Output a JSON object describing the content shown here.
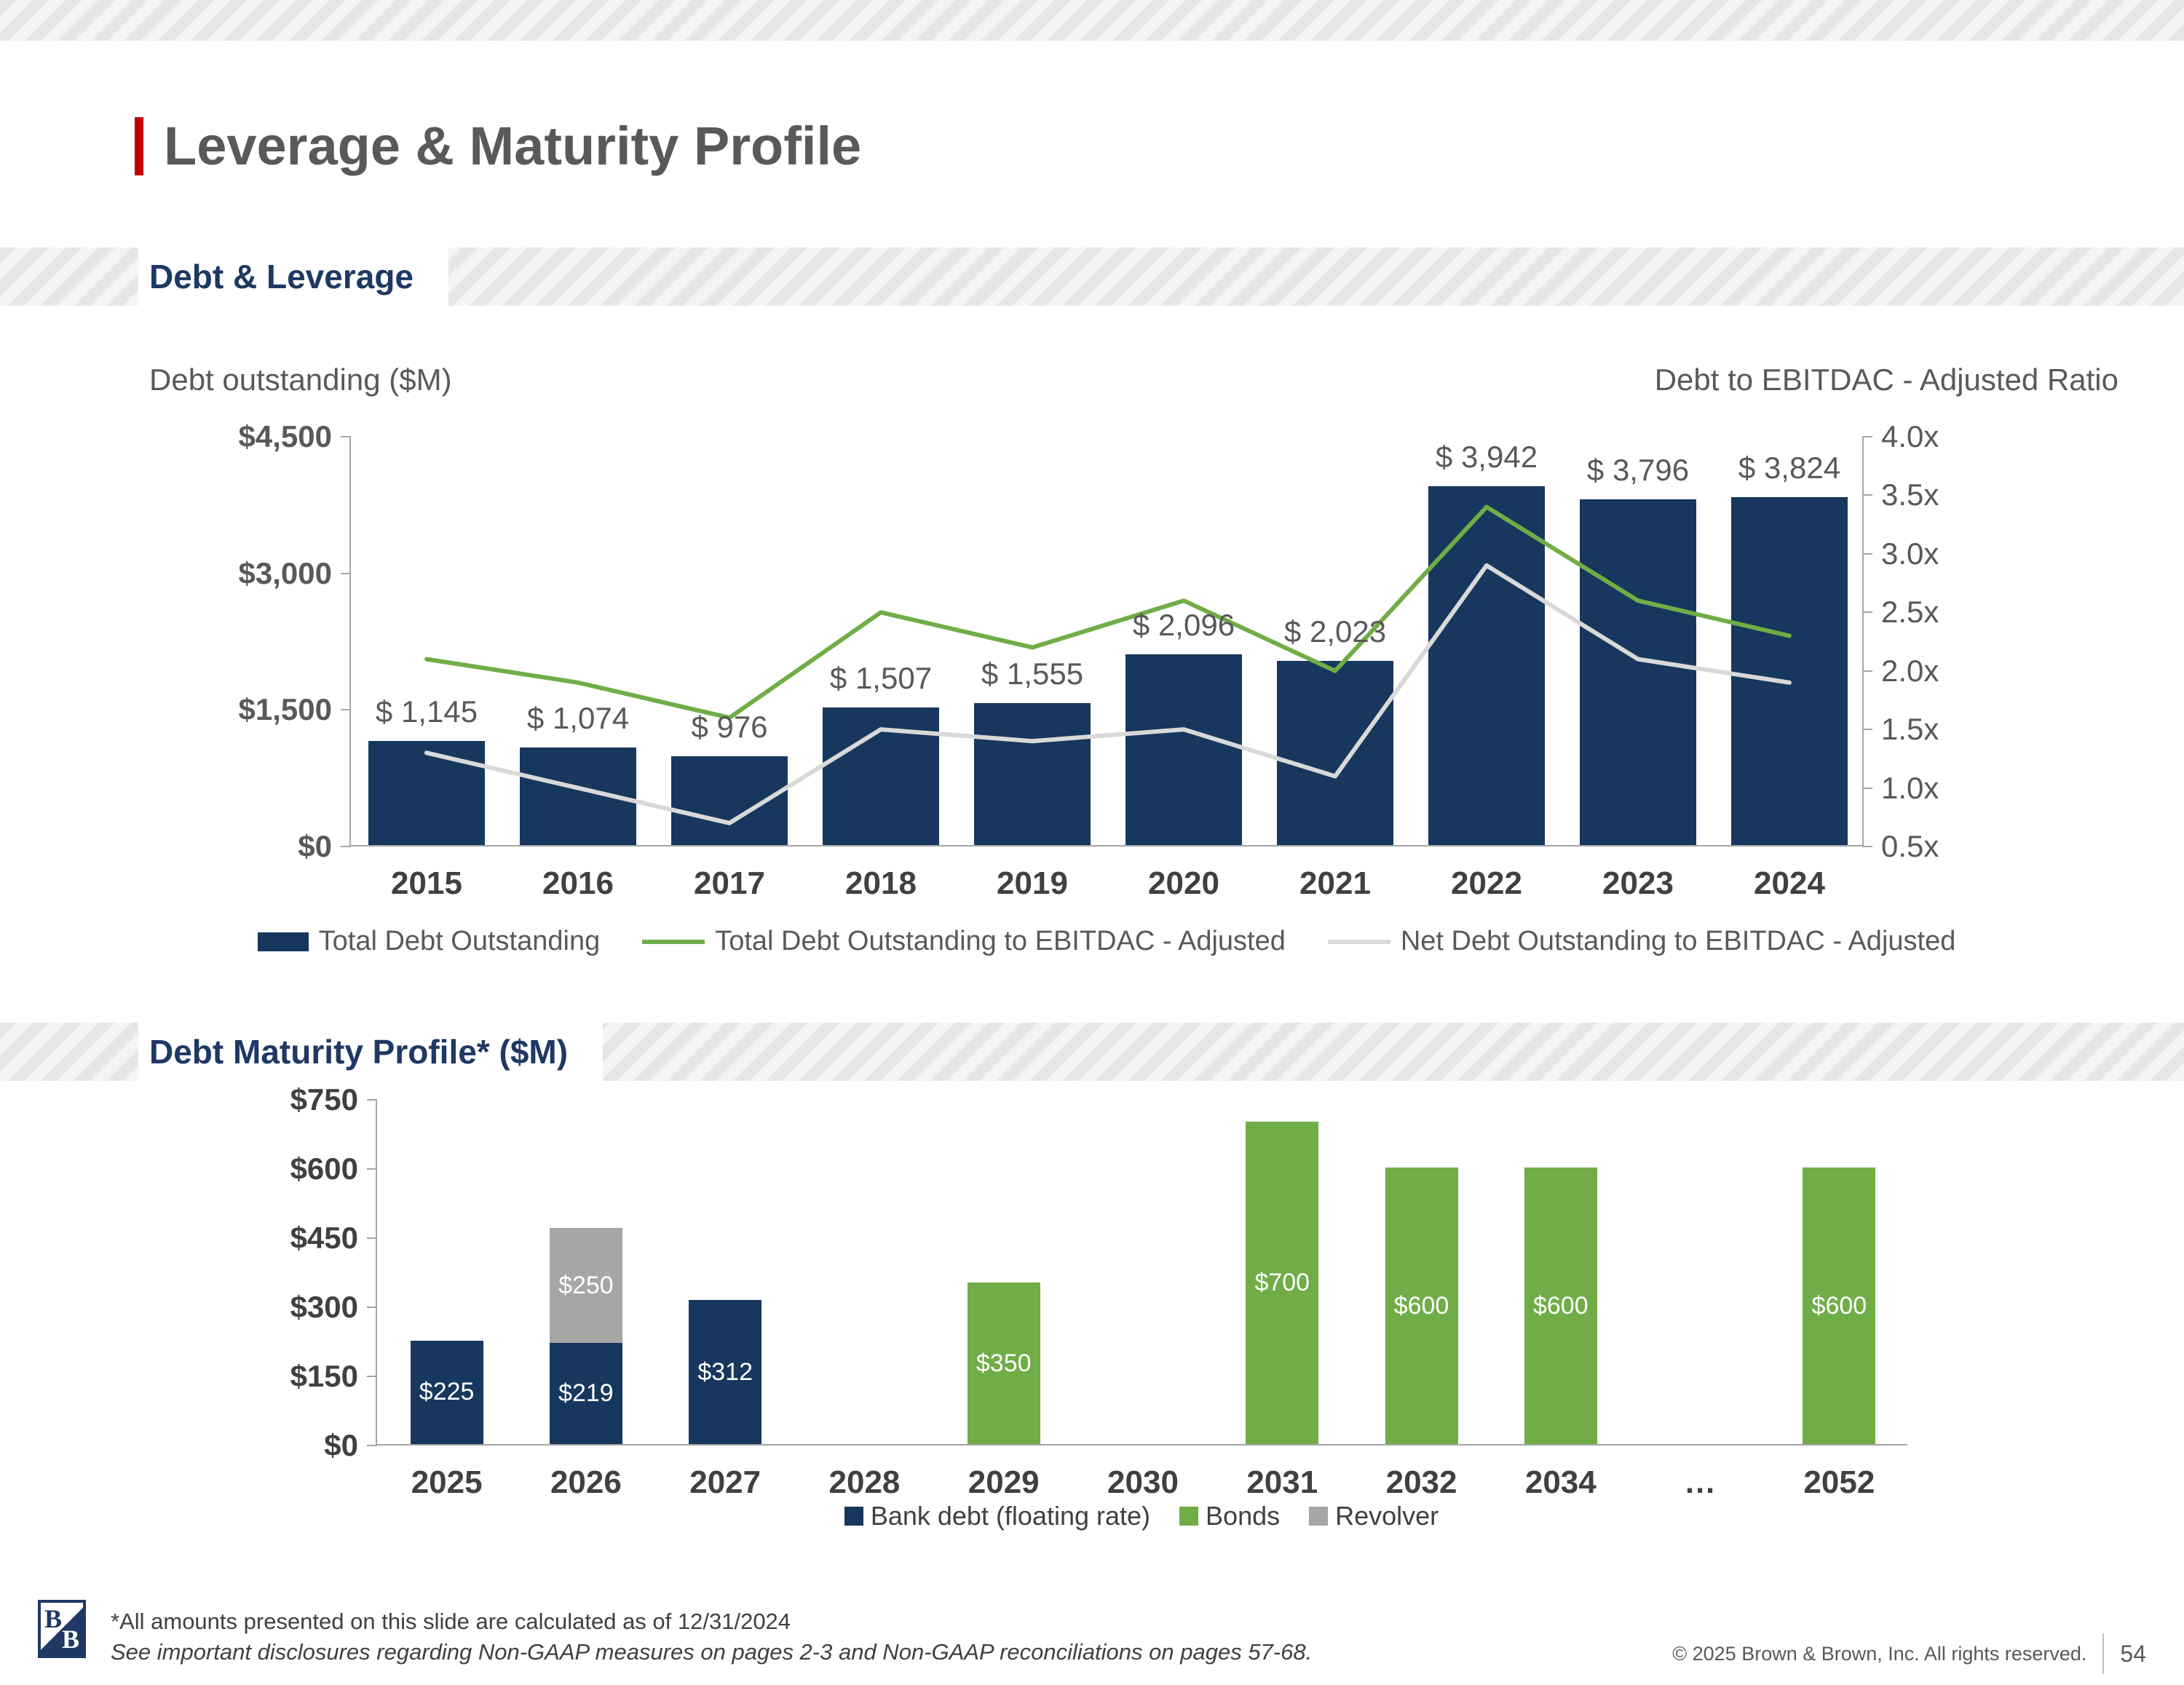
{
  "header": {
    "title": "Leverage & Maturity Profile"
  },
  "sections": {
    "debt_leverage": "Debt & Leverage",
    "maturity": "Debt Maturity Profile* ($M)"
  },
  "chart_data": [
    {
      "id": "debt-leverage-combo",
      "type": "bar",
      "left_axis_title": "Debt outstanding ($M)",
      "right_axis_title": "Debt to EBITDAC - Adjusted Ratio",
      "categories": [
        "2015",
        "2016",
        "2017",
        "2018",
        "2019",
        "2020",
        "2021",
        "2022",
        "2023",
        "2024"
      ],
      "bar_series": {
        "name": "Total Debt Outstanding",
        "color": "#17375E",
        "values": [
          1145,
          1074,
          976,
          1507,
          1555,
          2096,
          2023,
          3942,
          3796,
          3824
        ],
        "labels": [
          "$ 1,145",
          "$ 1,074",
          "$ 976",
          "$ 1,507",
          "$ 1,555",
          "$ 2,096",
          "$ 2,023",
          "$ 3,942",
          "$ 3,796",
          "$ 3,824"
        ]
      },
      "line_series": [
        {
          "name": "Total Debt Outstanding to EBITDAC - Adjusted",
          "color": "#70AD47",
          "values": [
            2.1,
            1.9,
            1.6,
            2.5,
            2.2,
            2.6,
            2.0,
            3.4,
            2.6,
            2.3
          ]
        },
        {
          "name": "Net Debt Outstanding to EBITDAC - Adjusted",
          "color": "#D9D9D9",
          "values": [
            1.3,
            1.0,
            0.7,
            1.5,
            1.4,
            1.5,
            1.1,
            2.9,
            2.1,
            1.9
          ]
        }
      ],
      "left_axis": {
        "min": 0,
        "max": 4500,
        "ticks": [
          "$0",
          "$1,500",
          "$3,000",
          "$4,500"
        ]
      },
      "right_axis": {
        "min": 0.5,
        "max": 4.0,
        "ticks": [
          "0.5x",
          "1.0x",
          "1.5x",
          "2.0x",
          "2.5x",
          "3.0x",
          "3.5x",
          "4.0x"
        ]
      },
      "grid": false,
      "legend_position": "bottom"
    },
    {
      "id": "debt-maturity",
      "type": "bar",
      "stacked": true,
      "categories": [
        "2025",
        "2026",
        "2027",
        "2028",
        "2029",
        "2030",
        "2031",
        "2032",
        "2034",
        "…",
        "2052"
      ],
      "series": [
        {
          "name": "Bank debt (floating rate)",
          "color": "#17375E",
          "values": [
            225,
            219,
            312,
            0,
            0,
            0,
            0,
            0,
            0,
            0,
            0
          ]
        },
        {
          "name": "Bonds",
          "color": "#70AD47",
          "values": [
            0,
            0,
            0,
            0,
            350,
            0,
            700,
            600,
            600,
            0,
            600
          ]
        },
        {
          "name": "Revolver",
          "color": "#A6A6A6",
          "values": [
            0,
            250,
            0,
            0,
            0,
            0,
            0,
            0,
            0,
            0,
            0
          ]
        }
      ],
      "value_prefix": "$",
      "y_axis": {
        "min": 0,
        "max": 750,
        "ticks": [
          "$0",
          "$150",
          "$300",
          "$450",
          "$600",
          "$750"
        ]
      },
      "grid": false,
      "legend_position": "bottom"
    }
  ],
  "footer": {
    "logo_b1": "B",
    "logo_b2": "B",
    "footnote_asof": "*All amounts presented on this slide are calculated as of 12/31/2024",
    "footnote_disclosure": "See important disclosures regarding Non-GAAP measures on pages 2-3 and Non-GAAP reconciliations on pages 57-68.",
    "copyright": "© 2025 Brown & Brown, Inc. All rights reserved.",
    "page_number": "54"
  }
}
